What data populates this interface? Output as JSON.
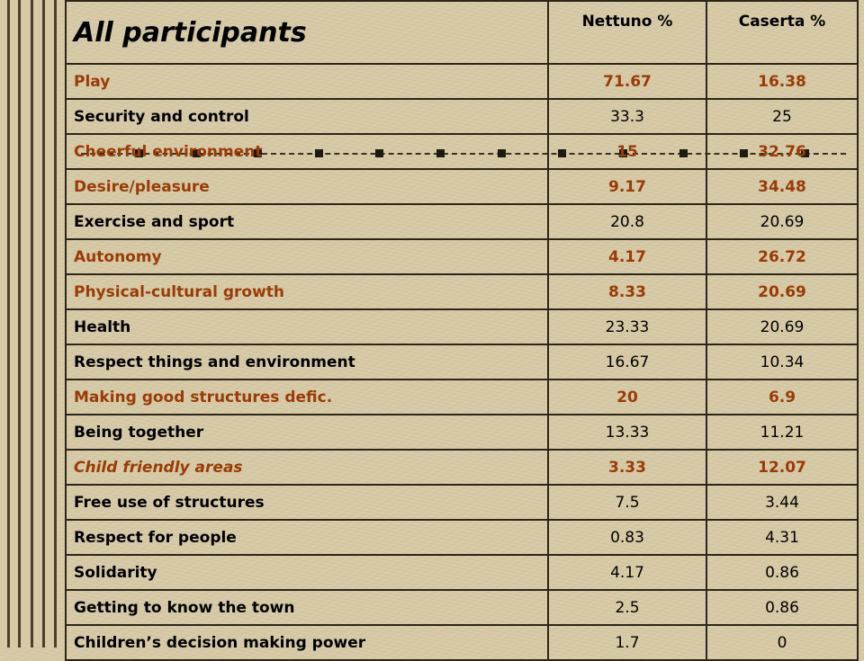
{
  "table": {
    "title": "All participants",
    "columns": [
      "Nettuno %",
      "Caserta %"
    ],
    "rows": [
      {
        "label": "Play",
        "nettuno": "71.67",
        "caserta": "16.38",
        "highlight": true
      },
      {
        "label": "Security and control",
        "nettuno": "33.3",
        "caserta": "25",
        "highlight": false
      },
      {
        "label": "Cheerful environment",
        "nettuno": "15",
        "caserta": "32.76",
        "highlight": true
      },
      {
        "label": "Desire/pleasure",
        "nettuno": "9.17",
        "caserta": "34.48",
        "highlight": true
      },
      {
        "label": "Exercise and sport",
        "nettuno": "20.8",
        "caserta": "20.69",
        "highlight": false
      },
      {
        "label": "Autonomy",
        "nettuno": "4.17",
        "caserta": "26.72",
        "highlight": true
      },
      {
        "label": "Physical-cultural growth",
        "nettuno": "8.33",
        "caserta": "20.69",
        "highlight": true
      },
      {
        "label": "Health",
        "nettuno": "23.33",
        "caserta": "20.69",
        "highlight": false
      },
      {
        "label": "Respect things and environment",
        "nettuno": "16.67",
        "caserta": "10.34",
        "highlight": false
      },
      {
        "label": "Making good structures defic.",
        "nettuno": "20",
        "caserta": "6.9",
        "highlight": true
      },
      {
        "label": "Being together",
        "nettuno": "13.33",
        "caserta": "11.21",
        "highlight": false
      },
      {
        "label": "Child friendly areas",
        "nettuno": "3.33",
        "caserta": "12.07",
        "highlight": true
      },
      {
        "label": "Free use of structures",
        "nettuno": "7.5",
        "caserta": "3.44",
        "highlight": false
      },
      {
        "label": "Respect for people",
        "nettuno": "0.83",
        "caserta": "4.31",
        "highlight": false
      },
      {
        "label": "Solidarity",
        "nettuno": "4.17",
        "caserta": "0.86",
        "highlight": false
      },
      {
        "label": "Getting to know the town",
        "nettuno": "2.5",
        "caserta": "0.86",
        "highlight": false
      },
      {
        "label": "Children’s decision making power",
        "nettuno": "1.7",
        "caserta": "0",
        "highlight": false
      }
    ]
  },
  "colors": {
    "highlight_text": "#9a3b08",
    "background": "#d6c9a5",
    "border": "#2d2618"
  }
}
